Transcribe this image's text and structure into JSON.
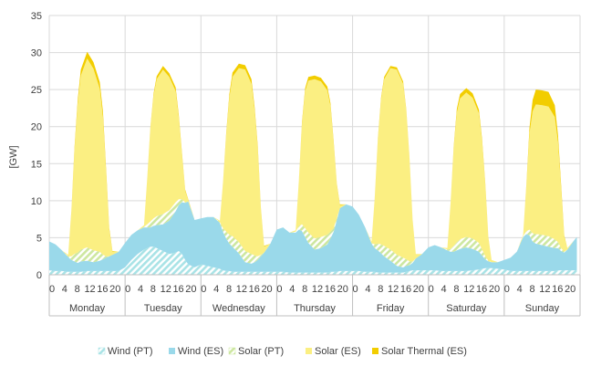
{
  "chart_data": {
    "type": "area",
    "title": "",
    "ylabel": "[GW]",
    "xlabel": "",
    "ylim": [
      0,
      35
    ],
    "yticks": [
      0,
      5,
      10,
      15,
      20,
      25,
      30,
      35
    ],
    "grid": "horizontal",
    "legend_position": "bottom",
    "stacked": true,
    "hours_per_day": 24,
    "hour_tick_labels": [
      "0",
      "4",
      "8",
      "12",
      "16",
      "20"
    ],
    "days": [
      "Monday",
      "Tuesday",
      "Wednesday",
      "Thursday",
      "Friday",
      "Saturday",
      "Sunday"
    ],
    "x_hours": [
      0,
      2,
      4,
      6,
      7,
      8,
      9,
      10,
      12,
      14,
      16,
      17,
      18,
      19,
      20,
      22,
      24,
      26,
      28,
      30,
      31,
      32,
      33,
      34,
      36,
      38,
      40,
      41,
      42,
      43,
      44,
      46,
      48,
      50,
      52,
      54,
      55,
      56,
      57,
      58,
      60,
      62,
      64,
      65,
      66,
      67,
      68,
      70,
      72,
      74,
      76,
      78,
      79,
      80,
      81,
      82,
      84,
      86,
      88,
      89,
      90,
      91,
      92,
      94,
      96,
      98,
      100,
      102,
      103,
      104,
      105,
      106,
      108,
      110,
      112,
      113,
      114,
      115,
      116,
      118,
      120,
      122,
      124,
      126,
      127,
      128,
      129,
      130,
      132,
      134,
      136,
      137,
      138,
      139,
      140,
      142,
      144,
      146,
      148,
      150,
      151,
      152,
      153,
      154,
      156,
      158,
      160,
      161,
      162,
      163,
      164,
      166,
      167
    ],
    "series": [
      {
        "name": "Wind (PT)",
        "color": "#a9e3e6",
        "pattern": "hatch",
        "values": [
          0.6,
          0.5,
          0.5,
          0.4,
          0.4,
          0.4,
          0.4,
          0.4,
          0.5,
          0.5,
          0.5,
          0.5,
          0.5,
          0.5,
          0.5,
          0.5,
          1.0,
          2.0,
          2.8,
          3.4,
          3.6,
          3.8,
          3.8,
          3.6,
          3.2,
          2.8,
          3.0,
          3.2,
          2.8,
          2.0,
          1.4,
          1.0,
          1.4,
          1.2,
          1.0,
          0.8,
          0.6,
          0.5,
          0.5,
          0.4,
          0.4,
          0.4,
          0.4,
          0.4,
          0.4,
          0.4,
          0.4,
          0.4,
          0.4,
          0.4,
          0.3,
          0.3,
          0.3,
          0.3,
          0.3,
          0.3,
          0.3,
          0.3,
          0.3,
          0.4,
          0.4,
          0.4,
          0.5,
          0.5,
          0.5,
          0.5,
          0.4,
          0.4,
          0.4,
          0.3,
          0.3,
          0.3,
          0.3,
          0.3,
          0.3,
          0.4,
          0.5,
          0.6,
          0.6,
          0.6,
          0.6,
          0.6,
          0.5,
          0.5,
          0.5,
          0.5,
          0.5,
          0.5,
          0.5,
          0.6,
          0.7,
          0.8,
          0.9,
          0.9,
          0.9,
          0.8,
          0.7,
          0.5,
          0.5,
          0.5,
          0.5,
          0.5,
          0.5,
          0.5,
          0.5,
          0.5,
          0.5,
          0.6,
          0.6,
          0.6,
          0.6,
          0.6,
          0.6
        ]
      },
      {
        "name": "Wind (ES)",
        "color": "#9ad9ea",
        "pattern": "solid",
        "values": [
          3.9,
          3.6,
          2.8,
          2.0,
          1.6,
          1.4,
          1.2,
          1.4,
          1.4,
          1.2,
          1.4,
          1.6,
          1.8,
          2.0,
          2.2,
          2.6,
          3.3,
          3.4,
          3.2,
          3.0,
          2.8,
          2.6,
          2.8,
          3.1,
          3.6,
          4.5,
          5.6,
          6.2,
          7.0,
          7.7,
          8.5,
          6.4,
          6.2,
          6.6,
          6.8,
          6.2,
          5.2,
          4.4,
          3.7,
          3.4,
          2.5,
          1.3,
          1.1,
          1.3,
          1.6,
          2.1,
          2.6,
          3.8,
          5.7,
          6.0,
          5.4,
          5.4,
          5.8,
          5.6,
          4.8,
          4.0,
          3.1,
          3.3,
          3.8,
          4.5,
          5.4,
          7.0,
          8.5,
          9.0,
          8.7,
          7.6,
          6.0,
          3.8,
          3.2,
          3.0,
          2.6,
          2.2,
          1.6,
          0.9,
          0.7,
          0.8,
          0.8,
          1.0,
          1.6,
          2.2,
          3.1,
          3.4,
          3.2,
          2.8,
          2.6,
          2.6,
          2.8,
          3.0,
          3.2,
          2.9,
          2.4,
          1.8,
          1.2,
          0.9,
          0.8,
          0.9,
          1.3,
          1.8,
          2.6,
          4.6,
          5.0,
          4.8,
          4.0,
          3.7,
          3.5,
          3.3,
          3.1,
          3.0,
          2.6,
          2.4,
          2.8,
          4.0,
          4.5
        ]
      },
      {
        "name": "Solar (PT)",
        "color": "#cde7a0",
        "pattern": "hatch",
        "values": [
          0,
          0,
          0,
          0.1,
          0.5,
          1.0,
          1.4,
          1.6,
          1.8,
          1.6,
          1.2,
          0.6,
          0.2,
          0,
          0,
          0,
          0,
          0,
          0,
          0.1,
          0.4,
          0.8,
          1.0,
          1.2,
          1.4,
          1.4,
          1.2,
          0.8,
          0.4,
          0.1,
          0,
          0,
          0,
          0,
          0,
          0.1,
          0.5,
          0.9,
          1.2,
          1.4,
          1.5,
          1.5,
          1.3,
          0.9,
          0.5,
          0.2,
          0,
          0,
          0,
          0,
          0,
          0.1,
          0.5,
          0.9,
          1.2,
          1.4,
          1.5,
          1.5,
          1.3,
          0.9,
          0.5,
          0.2,
          0,
          0,
          0,
          0,
          0,
          0.1,
          0.5,
          0.9,
          1.2,
          1.4,
          1.5,
          1.5,
          1.3,
          0.9,
          0.5,
          0.2,
          0,
          0,
          0,
          0,
          0,
          0.1,
          0.4,
          0.8,
          1.1,
          1.3,
          1.4,
          1.4,
          1.2,
          0.8,
          0.4,
          0.1,
          0,
          0,
          0,
          0,
          0,
          0.1,
          0.4,
          0.8,
          1.1,
          1.3,
          1.4,
          1.4,
          1.2,
          0.8,
          0.4,
          0.1,
          0,
          0,
          0
        ]
      },
      {
        "name": "Solar (ES)",
        "color": "#fbef82",
        "pattern": "solid",
        "values": [
          0,
          0,
          0,
          0.2,
          6.0,
          14.0,
          20.0,
          23.5,
          25.5,
          24.5,
          22.0,
          18.5,
          11.0,
          3.5,
          0.4,
          0,
          0,
          0,
          0,
          0.2,
          6.0,
          12.5,
          16.5,
          18.5,
          19.5,
          18.0,
          15.0,
          11.0,
          6.0,
          1.5,
          0.2,
          0,
          0,
          0,
          0,
          0.2,
          6.0,
          13.0,
          18.5,
          21.5,
          23.5,
          24.5,
          23.0,
          19.5,
          14.5,
          6.0,
          0.8,
          0,
          0,
          0,
          0,
          0.2,
          6.0,
          13.5,
          18.5,
          20.5,
          21.5,
          21.0,
          19.5,
          17.0,
          11.5,
          4.5,
          0.4,
          0,
          0,
          0,
          0,
          0.2,
          6.0,
          14.0,
          19.5,
          22.5,
          24.5,
          25.0,
          23.5,
          20.0,
          14.0,
          5.5,
          0.6,
          0,
          0,
          0,
          0,
          0.2,
          6.0,
          13.0,
          17.5,
          19.0,
          19.5,
          19.0,
          17.5,
          14.5,
          9.5,
          3.0,
          0.3,
          0,
          0,
          0,
          0,
          0.2,
          6.0,
          13.0,
          16.5,
          17.5,
          17.5,
          17.5,
          16.5,
          13.5,
          8.0,
          2.0,
          0.2,
          0,
          0
        ]
      },
      {
        "name": "Solar Thermal (ES)",
        "color": "#f2cd00",
        "pattern": "solid",
        "values": [
          0,
          0,
          0,
          0,
          0.2,
          0.4,
          0.6,
          0.8,
          0.9,
          0.9,
          0.9,
          0.8,
          0.6,
          0.3,
          0.1,
          0,
          0,
          0,
          0,
          0,
          0.1,
          0.2,
          0.3,
          0.4,
          0.5,
          0.5,
          0.5,
          0.4,
          0.3,
          0.2,
          0.1,
          0,
          0,
          0,
          0,
          0,
          0.1,
          0.3,
          0.5,
          0.6,
          0.6,
          0.6,
          0.6,
          0.5,
          0.4,
          0.2,
          0.1,
          0,
          0,
          0,
          0,
          0,
          0.1,
          0.3,
          0.4,
          0.5,
          0.5,
          0.5,
          0.5,
          0.4,
          0.3,
          0.2,
          0.1,
          0,
          0,
          0,
          0,
          0,
          0.1,
          0.2,
          0.3,
          0.3,
          0.3,
          0.3,
          0.3,
          0.2,
          0.2,
          0.1,
          0,
          0,
          0,
          0,
          0,
          0,
          0.1,
          0.3,
          0.5,
          0.6,
          0.6,
          0.6,
          0.5,
          0.4,
          0.3,
          0.1,
          0,
          0,
          0,
          0,
          0,
          0,
          0.2,
          0.8,
          1.5,
          2.0,
          2.0,
          2.0,
          1.6,
          1.0,
          0.6,
          0.2,
          0,
          0,
          0
        ]
      }
    ]
  }
}
